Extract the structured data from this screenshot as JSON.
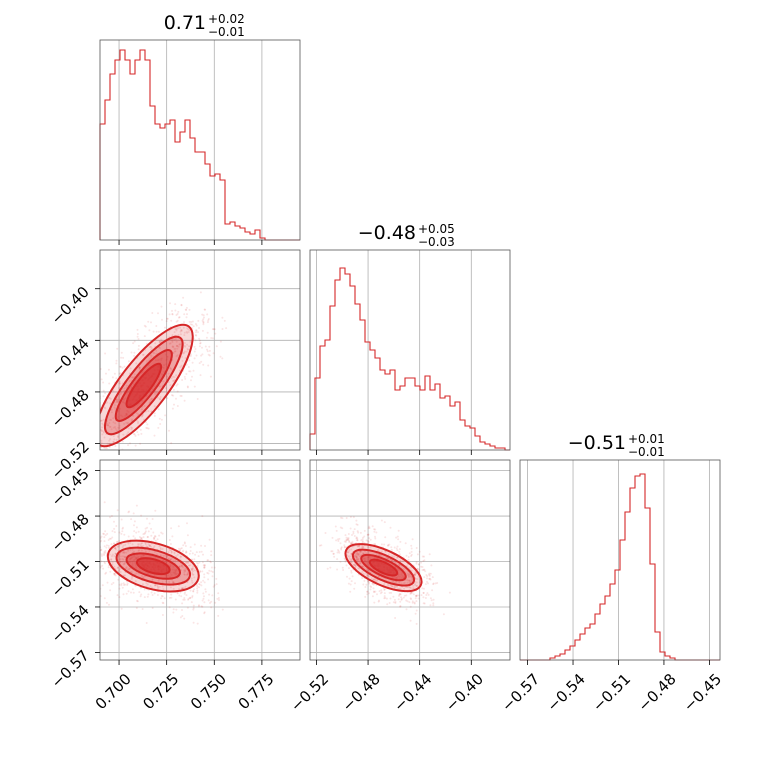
{
  "chart_data": {
    "type": "corner",
    "color": "#d62728",
    "titles": [
      {
        "value": "0.71",
        "plus": "+0.02",
        "minus": "−0.01"
      },
      {
        "value": "−0.48",
        "plus": "+0.05",
        "minus": "−0.03"
      },
      {
        "value": "−0.51",
        "plus": "+0.01",
        "minus": "−0.01"
      }
    ],
    "params": [
      {
        "range": [
          0.69,
          0.795
        ],
        "ticks": [
          0.7,
          0.725,
          0.75,
          0.775
        ],
        "tick_labels": [
          "0.700",
          "0.725",
          "0.750",
          "0.775"
        ]
      },
      {
        "range": [
          -0.525,
          -0.37
        ],
        "ticks": [
          -0.52,
          -0.48,
          -0.44,
          -0.4
        ],
        "tick_labels": [
          "−0.52",
          "−0.48",
          "−0.44",
          "−0.40"
        ]
      },
      {
        "range": [
          -0.575,
          -0.443
        ],
        "ticks": [
          -0.57,
          -0.54,
          -0.51,
          -0.48,
          -0.45
        ],
        "tick_labels": [
          "−0.57",
          "−0.54",
          "−0.51",
          "−0.48",
          "−0.45"
        ]
      }
    ],
    "hist_1d": [
      [
        0.58,
        0.7,
        0.83,
        0.9,
        0.95,
        0.9,
        0.83,
        0.9,
        0.95,
        0.9,
        0.67,
        0.58,
        0.56,
        0.58,
        0.6,
        0.49,
        0.54,
        0.6,
        0.51,
        0.44,
        0.44,
        0.38,
        0.32,
        0.33,
        0.3,
        0.08,
        0.09,
        0.07,
        0.06,
        0.04,
        0.03,
        0.05,
        0.01,
        0.0,
        0.0,
        0.0,
        0.0,
        0.0,
        0.0,
        0.0
      ],
      [
        0.08,
        0.36,
        0.52,
        0.55,
        0.72,
        0.85,
        0.91,
        0.88,
        0.82,
        0.73,
        0.65,
        0.54,
        0.5,
        0.46,
        0.4,
        0.38,
        0.4,
        0.3,
        0.32,
        0.36,
        0.36,
        0.32,
        0.3,
        0.37,
        0.3,
        0.33,
        0.26,
        0.27,
        0.22,
        0.24,
        0.15,
        0.12,
        0.11,
        0.07,
        0.04,
        0.03,
        0.02,
        0.01,
        0.01,
        0.0
      ],
      [
        0.0,
        0.0,
        0.0,
        0.0,
        0.0,
        0.0,
        0.01,
        0.02,
        0.03,
        0.05,
        0.07,
        0.1,
        0.13,
        0.16,
        0.18,
        0.23,
        0.28,
        0.32,
        0.38,
        0.45,
        0.6,
        0.74,
        0.86,
        0.92,
        0.93,
        0.76,
        0.48,
        0.14,
        0.04,
        0.02,
        0.01,
        0.0,
        0.0,
        0.0,
        0.0,
        0.0,
        0.0,
        0.0,
        0.0,
        0.0
      ]
    ],
    "pairs": [
      {
        "x_param": 0,
        "y_param": 1,
        "center": [
          0.713,
          -0.475
        ],
        "axis": [
          0.045,
          0.087
        ],
        "width": [
          0.004,
          0.005
        ]
      },
      {
        "x_param": 0,
        "y_param": 2,
        "center": [
          0.718,
          -0.513
        ],
        "axis": [
          0.045,
          -0.016
        ],
        "width": [
          0.003,
          0.005
        ]
      },
      {
        "x_param": 1,
        "y_param": 2,
        "center": [
          -0.468,
          -0.514
        ],
        "axis": [
          0.055,
          -0.022
        ],
        "width": [
          0.003,
          0.004
        ]
      }
    ]
  }
}
